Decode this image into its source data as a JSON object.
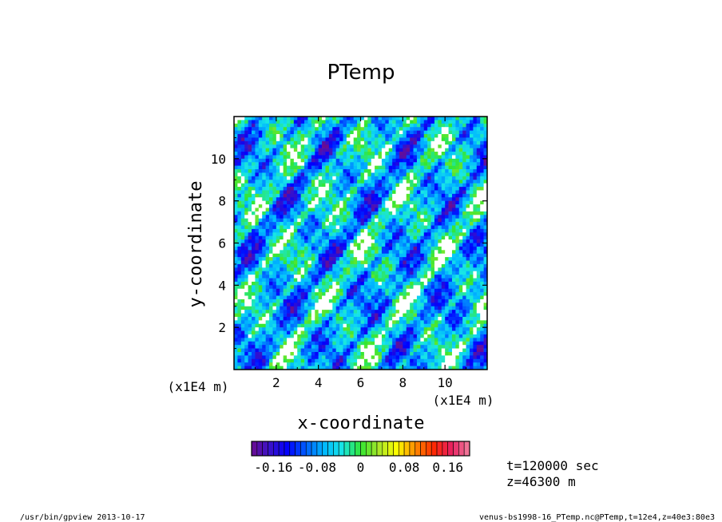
{
  "chart_data": {
    "type": "heatmap",
    "title": "PTemp",
    "xlabel": "x-coordinate",
    "ylabel": "y-coordinate",
    "x_unit": "(x1E4 m)",
    "y_unit": "(x1E4 m)",
    "xlim": [
      0,
      12
    ],
    "ylim": [
      0,
      12
    ],
    "x_ticks": [
      2,
      4,
      6,
      8,
      10
    ],
    "y_ticks": [
      2,
      4,
      6,
      8,
      10
    ],
    "colorbar": {
      "range": [
        -0.2,
        0.2
      ],
      "n_levels": 40,
      "tick_values": [
        -0.16,
        -0.08,
        0,
        0.08,
        0.16
      ],
      "tick_labels": [
        "-0.16",
        "-0.08",
        "0",
        "0.08",
        "0.16"
      ],
      "colors": [
        "#6a0d91",
        "#3a12c8",
        "#0000ff",
        "#0060ff",
        "#00b8ff",
        "#18e6e6",
        "#32e632",
        "#a8e62a",
        "#ffff00",
        "#ff8c00",
        "#ff2a00",
        "#e82060",
        "#f080a0"
      ],
      "missing_color": "#ffffff"
    },
    "annotations": [
      "t=120000 sec",
      "z=46300 m"
    ]
  },
  "footer": {
    "left": "/usr/bin/gpview  2013-10-17",
    "right": "venus-bs1998-16_PTemp.nc@PTemp,t=12e4,z=40e3:80e3"
  }
}
